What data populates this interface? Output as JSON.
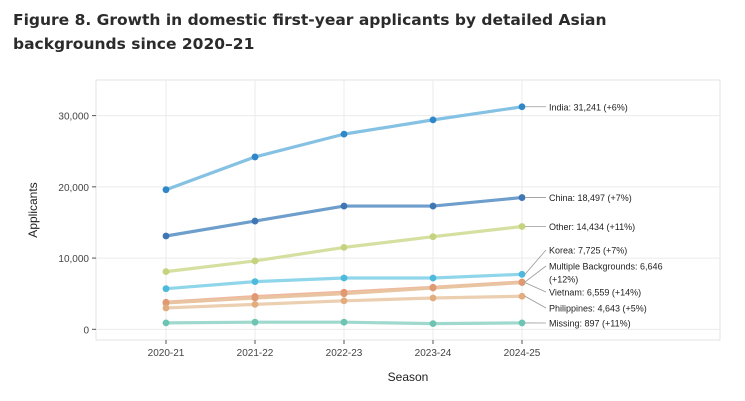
{
  "figure_title": "Figure 8. Growth in domestic first-year applicants by detailed Asian backgrounds since 2020–21",
  "chart_data": {
    "type": "line",
    "title": "Figure 8. Growth in domestic first-year applicants by detailed Asian backgrounds since 2020–21",
    "xlabel": "Season",
    "ylabel": "Applicants",
    "categories": [
      "2020-21",
      "2021-22",
      "2022-23",
      "2023-24",
      "2024-25"
    ],
    "ylim": [
      -1500,
      35000
    ],
    "yticks": [
      0,
      10000,
      20000,
      30000
    ],
    "ytick_labels": [
      "0",
      "10,000",
      "20,000",
      "30,000"
    ],
    "grid": true,
    "series": [
      {
        "name": "India",
        "label": "India: 31,241 (+6%)",
        "color": "#85c1e3",
        "point_color": "#2f86c8",
        "values": [
          19600,
          24200,
          27400,
          29400,
          31241
        ]
      },
      {
        "name": "China",
        "label": "China: 18,497 (+7%)",
        "color": "#6e9ecb",
        "point_color": "#3f77b5",
        "values": [
          13100,
          15200,
          17300,
          17300,
          18497
        ]
      },
      {
        "name": "Other",
        "label": "Other: 14,434 (+11%)",
        "color": "#d4dfa0",
        "point_color": "#c4d47e",
        "values": [
          8100,
          9600,
          11500,
          13000,
          14434
        ]
      },
      {
        "name": "Korea",
        "label": "Korea: 7,725 (+7%)",
        "color": "#8fd6ea",
        "point_color": "#4cb9dd",
        "values": [
          5700,
          6700,
          7200,
          7200,
          7725
        ]
      },
      {
        "name": "Multiple Backgrounds",
        "label": [
          "Multiple Backgrounds: 6,646",
          "(+12%)"
        ],
        "color": "#f0b8a0",
        "point_color": "#ea8f6c",
        "values": [
          3800,
          4600,
          5200,
          5900,
          6646
        ]
      },
      {
        "name": "Vietnam",
        "label": "Vietnam: 6,559 (+14%)",
        "color": "#e8c4a0",
        "point_color": "#de9a72",
        "values": [
          3700,
          4400,
          5000,
          5800,
          6559
        ]
      },
      {
        "name": "Philippines",
        "label": "Philippines: 4,643 (+5%)",
        "color": "#ebcfb0",
        "point_color": "#e3ac7e",
        "values": [
          3000,
          3500,
          4000,
          4400,
          4643
        ]
      },
      {
        "name": "Missing",
        "label": "Missing: 897 (+11%)",
        "color": "#9fd9cd",
        "point_color": "#6dc4b3",
        "values": [
          900,
          1000,
          1000,
          800,
          897
        ]
      }
    ]
  }
}
